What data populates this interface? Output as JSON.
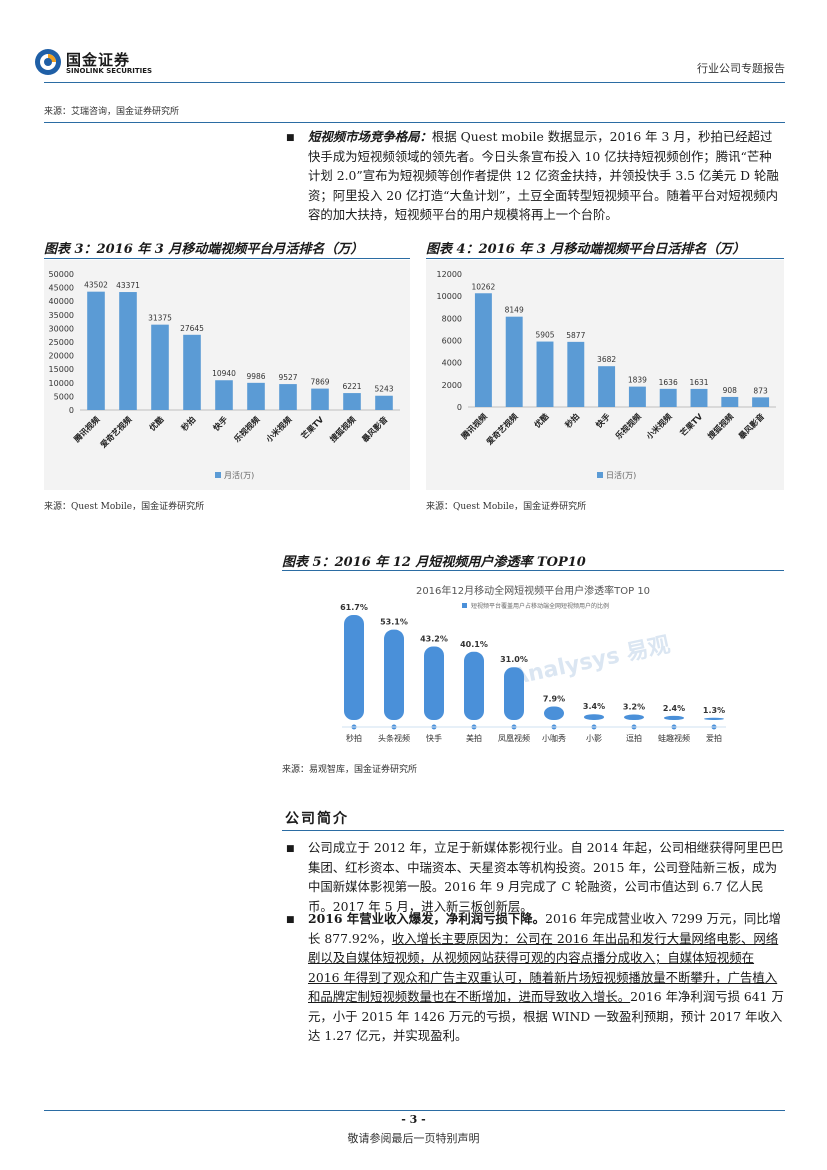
{
  "header": {
    "logo_cn": "国金证券",
    "logo_en": "SINOLINK SECURITIES",
    "right_title": "行业公司专题报告",
    "colors": {
      "accent": "#2b6ca3",
      "bar": "#5b9bd5"
    }
  },
  "source_top": "来源：艾瑞咨询，国金证券研究所",
  "para1": {
    "bold": "短视频市场竞争格局：",
    "text": "根据 Quest mobile 数据显示，2016 年 3 月，秒拍已经超过快手成为短视频领域的领先者。今日头条宣布投入 10 亿扶持短视频创作；腾讯“芒种计划 2.0”宣布为短视频等创作者提供 12 亿资金扶持，并领投快手 3.5 亿美元 D 轮融资；阿里投入 20 亿打造“大鱼计划”，土豆全面转型短视频平台。随着平台对短视频内容的加大扶持，短视频平台的用户规模将再上一个台阶。"
  },
  "fig3": {
    "title": "图表 3：2016 年 3 月移动端视频平台月活排名（万）",
    "source": "来源：Quest Mobile，国金证券研究所"
  },
  "fig4": {
    "title": "图表 4：2016 年 3 月移动端视频平台日活排名（万）",
    "source": "来源：Quest Mobile，国金证券研究所"
  },
  "fig5": {
    "title": "图表 5：2016 年 12 月短视频用户渗透率 TOP10",
    "source": "来源：易观智库，国金证券研究所"
  },
  "chart_data": [
    {
      "type": "bar",
      "categories": [
        "腾讯视频",
        "爱奇艺视频",
        "优酷",
        "秒拍",
        "快手",
        "乐视视频",
        "小米视频",
        "芒果TV",
        "搜狐视频",
        "暴风影音"
      ],
      "series": [
        {
          "name": "月活(万)",
          "values": [
            43502,
            43371,
            31375,
            27645,
            10940,
            9986,
            9527,
            7869,
            6221,
            5243
          ]
        }
      ],
      "yticks": [
        "0",
        "5000",
        "10000",
        "15000",
        "20000",
        "25000",
        "30000",
        "35000",
        "40000",
        "45000",
        "50000"
      ],
      "ylim": [
        0,
        50000
      ],
      "legend": "bottom"
    },
    {
      "type": "bar",
      "categories": [
        "腾讯视频",
        "爱奇艺视频",
        "优酷",
        "秒拍",
        "快手",
        "乐视视频",
        "小米视频",
        "芒果TV",
        "搜狐视频",
        "暴风影音"
      ],
      "series": [
        {
          "name": "日活(万)",
          "values": [
            10262,
            8149,
            5905,
            5877,
            3682,
            1839,
            1636,
            1631,
            908,
            873
          ]
        }
      ],
      "yticks": [
        "0",
        "2000",
        "4000",
        "6000",
        "8000",
        "10000",
        "12000"
      ],
      "ylim": [
        0,
        12000
      ],
      "legend": "bottom"
    },
    {
      "type": "bar",
      "title": "2016年12月移动全网短视频平台用户渗透率TOP 10",
      "categories": [
        "秒拍",
        "头条视频",
        "快手",
        "美拍",
        "凤凰视频",
        "小咖秀",
        "小影",
        "逗拍",
        "蛙趣视频",
        "爱拍"
      ],
      "series": [
        {
          "name": "短视频平台覆盖用户占移动端全网短视频用户的比例",
          "values": [
            61.7,
            53.1,
            43.2,
            40.1,
            31.0,
            7.9,
            3.4,
            3.2,
            2.4,
            1.3
          ]
        }
      ],
      "value_labels": [
        "61.7%",
        "53.1%",
        "43.2%",
        "40.1%",
        "31.0%",
        "7.9%",
        "3.4%",
        "3.2%",
        "2.4%",
        "1.3%"
      ],
      "watermark": "Analysys 易观",
      "legend": "top"
    }
  ],
  "section_title": "公司简介",
  "para2": "公司成立于 2012 年，立足于新媒体影视行业。自 2014 年起，公司相继获得阿里巴巴集团、红杉资本、中瑞资本、天星资本等机构投资。2015 年，公司登陆新三板，成为中国新媒体影视第一股。2016 年 9 月完成了 C 轮融资，公司市值达到 6.7 亿人民币。2017 年 5 月，进入新三板创新层。",
  "para3": {
    "bold": "2016 年营业收入爆发，净利润亏损下降。",
    "text_a": "2016 年完成营业收入 7299 万元，同比增长 877.92%，",
    "underlined": "收入增长主要原因为：公司在 2016 年出品和发行大量网络电影、网络剧以及自媒体短视频，从视频网站获得可观的内容点播分成收入；自媒体短视频在 2016 年得到了观众和广告主双重认可，随着新片场短视频播放量不断攀升，广告植入和品牌定制短视频数量也在不断增加，进而导致收入增长。",
    "text_b": "2016 年净利润亏损 641 万元，小于 2015 年 1426 万元的亏损，根据 WIND 一致盈利预期，预计 2017 年收入达 1.27 亿元，并实现盈利。"
  },
  "footer": {
    "page": "- 3 -",
    "note": "敬请参阅最后一页特别声明"
  }
}
